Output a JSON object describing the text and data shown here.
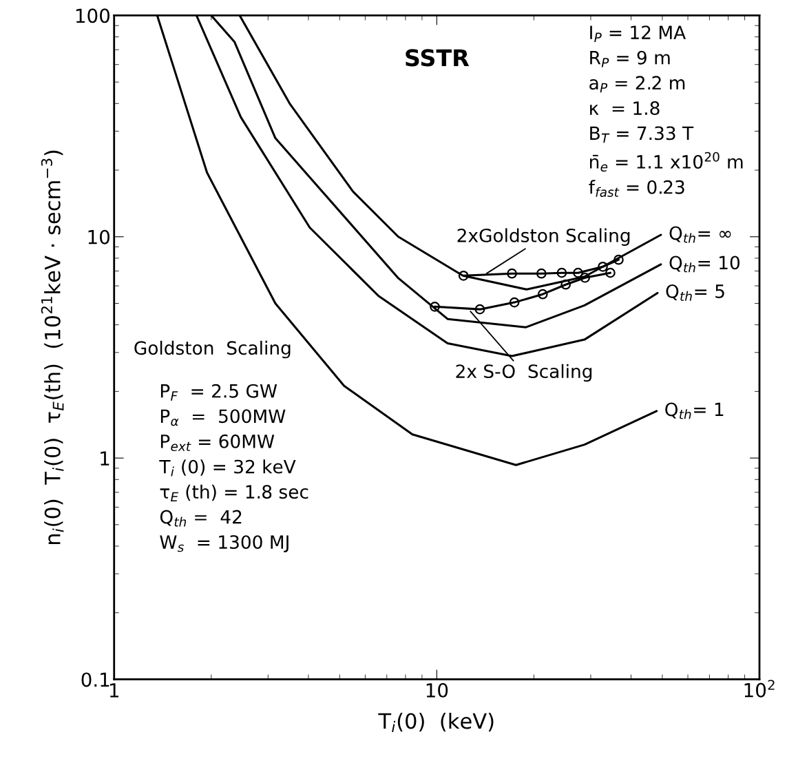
{
  "chart_data": {
    "type": "line",
    "title": "SSTR",
    "xlabel": "T$_{i}$(0)  (keV)",
    "ylabel": "n$_{i}$(0)  T$_{i}$(0)  τ$_{E}$(th)  (10$^{21}$keV · secm$^{−3}$)",
    "log": "xy",
    "xlim": [
      1,
      100
    ],
    "ylim": [
      0.1,
      100
    ],
    "xticks": [
      1,
      10,
      {
        "value": 100,
        "label": "10$^{2}$"
      }
    ],
    "yticks": [
      0.1,
      1,
      10,
      100
    ],
    "grid": false,
    "legend": false,
    "line_style": "solid",
    "series": [
      {
        "color": "#000000",
        "marker": "none",
        "x": [
          1.36,
          1.94,
          3.16,
          5.16,
          8.4,
          17.6,
          28.7,
          48
        ],
        "values": [
          100,
          19.5,
          5.0,
          2.12,
          1.28,
          0.93,
          1.15,
          1.63
        ]
      },
      {
        "color": "#000000",
        "marker": "none",
        "x": [
          1.8,
          2.47,
          4.04,
          6.6,
          10.8,
          17.1,
          28.7,
          48.3
        ],
        "values": [
          100,
          34.7,
          11,
          5.4,
          3.3,
          2.89,
          3.43,
          5.57
        ]
      },
      {
        "color": "#000000",
        "marker": "none",
        "x": [
          2.0,
          2.36,
          3.16,
          7.6,
          10.8,
          18.9,
          28.7,
          49.5
        ],
        "values": [
          100,
          76,
          27.9,
          6.5,
          4.25,
          3.9,
          4.9,
          7.5
        ]
      },
      {
        "color": "#000000",
        "marker": "none",
        "x": [
          2.45,
          3.5,
          5.5,
          7.6,
          12.05,
          19.0,
          28.7,
          49.5
        ],
        "values": [
          100,
          40,
          16,
          10.0,
          6.67,
          5.78,
          6.6,
          10.2
        ]
      },
      {
        "color": "#000000",
        "marker": "circle",
        "x": [
          12.1,
          17.1,
          21.1,
          24.4,
          27.4,
          32.7,
          36.6
        ],
        "values": [
          6.67,
          6.82,
          6.82,
          6.87,
          6.87,
          7.32,
          7.87
        ]
      },
      {
        "color": "#000000",
        "marker": "circle",
        "x": [
          9.86,
          13.6,
          17.4,
          21.3,
          25.1,
          28.8,
          34.5
        ],
        "values": [
          4.83,
          4.7,
          5.05,
          5.5,
          6.08,
          6.53,
          6.87
        ]
      }
    ],
    "annotations": [
      {
        "text": "Q$_{th}$= ∞",
        "x": 49.5,
        "y": 10.2
      },
      {
        "text": "Q$_{th}$= 10",
        "x": 49.5,
        "y": 7.5
      },
      {
        "text": "Q$_{th}$= 5",
        "x": 48.3,
        "y": 5.57
      },
      {
        "text": "Q$_{th}$= 1",
        "x": 48,
        "y": 1.63
      },
      {
        "text": "2xGoldston Scaling",
        "x": 14.1,
        "y": 6.75
      },
      {
        "text": "2x S-O  Scaling",
        "x": 12.6,
        "y": 4.67
      },
      "I$_{P}$ = 12 MA\nR$_{P}$ = 9 m\na$_{P}$ = 2.2 m\nκ  = 1.8\nB$_{T}$ = 7.33 T\nn̄$_{e}$ = 1.1 x10$^{20}$ m\nf$_{fast}$ = 0.23",
      "Goldston  Scaling",
      "P$_{F}$  = 2.5 GW\nP$_{α}$  =  500MW\nP$_{ext}$ = 60MW\nT$_{i}$ (0) = 32 keV\nτ$_{E}$ (th) = 1.8 sec\nQ$_{th}$ =  42\nW$_{s}$  = 1300 MJ"
    ]
  }
}
